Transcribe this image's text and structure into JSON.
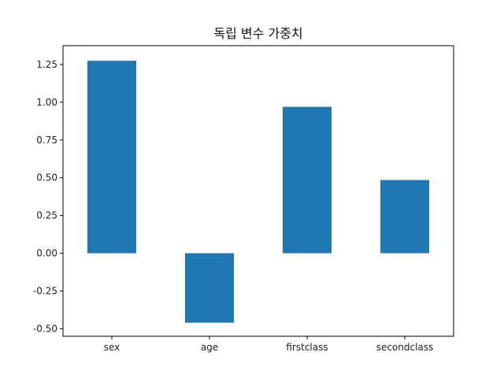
{
  "chart_data": {
    "type": "bar",
    "title": "독립 변수 가중치",
    "categories": [
      "sex",
      "age",
      "firstclass",
      "secondclass"
    ],
    "values": [
      1.275,
      -0.46,
      0.97,
      0.485
    ],
    "ylim": [
      -0.55,
      1.375
    ],
    "yticks": [
      -0.5,
      -0.25,
      0.0,
      0.25,
      0.5,
      0.75,
      1.0,
      1.25
    ],
    "ytick_labels": [
      "-0.50",
      "-0.25",
      "0.00",
      "0.25",
      "0.50",
      "0.75",
      "1.00",
      "1.25"
    ],
    "xlabel": "",
    "ylabel": "",
    "grid": false,
    "bar_color": "#1f77b4"
  }
}
